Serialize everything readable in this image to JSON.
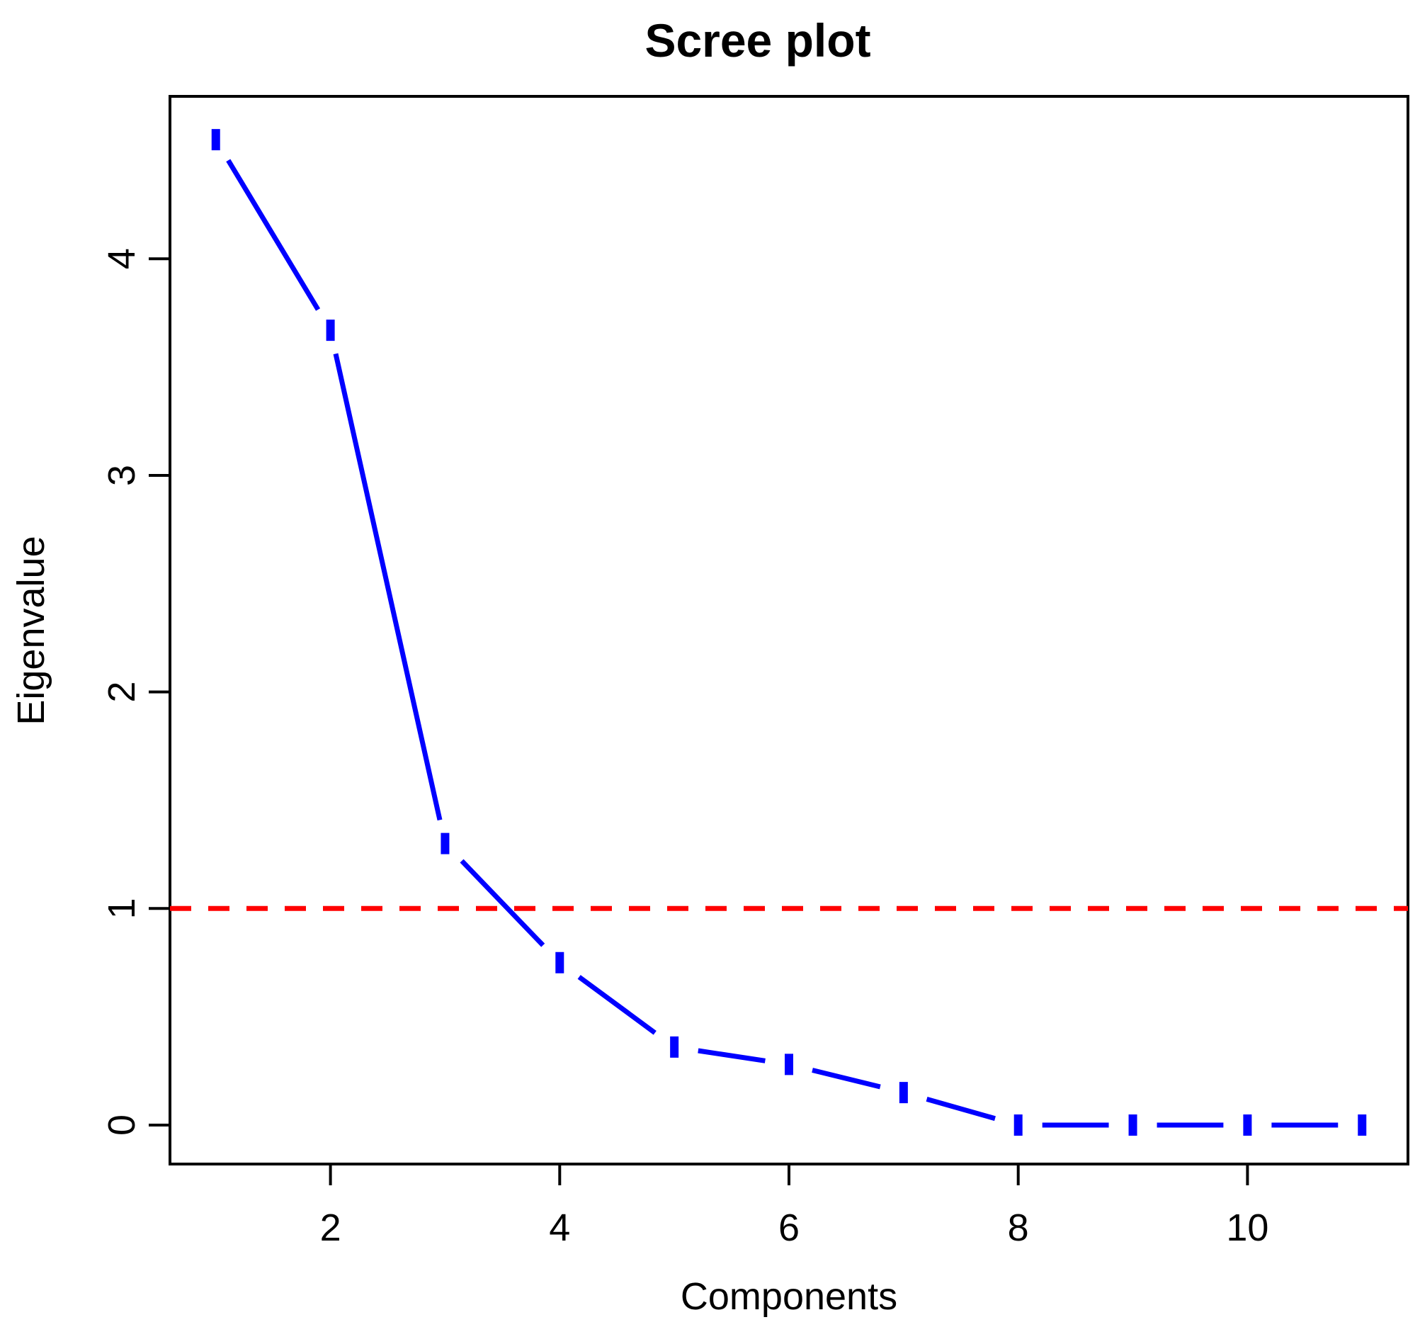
{
  "chart_data": {
    "type": "line",
    "title": "Scree plot",
    "xlabel": "Components",
    "ylabel": "Eigenvalue",
    "x": [
      1,
      2,
      3,
      4,
      5,
      6,
      7,
      8,
      9,
      10,
      11
    ],
    "series": [
      {
        "values": [
          4.55,
          3.67,
          1.3,
          0.75,
          0.36,
          0.28,
          0.15,
          0.0,
          0.0,
          0.0,
          0.0
        ],
        "color": "#0000ff",
        "style": "line with point markers"
      }
    ],
    "reference_line": {
      "y": 1,
      "color": "#ff0000",
      "style": "dashed"
    },
    "xticks": [
      2,
      4,
      6,
      8,
      10
    ],
    "yticks": [
      0,
      1,
      2,
      3,
      4
    ],
    "xlim": [
      0.6,
      11.4
    ],
    "ylim": [
      -0.18,
      4.75
    ],
    "grid": false,
    "legend": "none"
  }
}
